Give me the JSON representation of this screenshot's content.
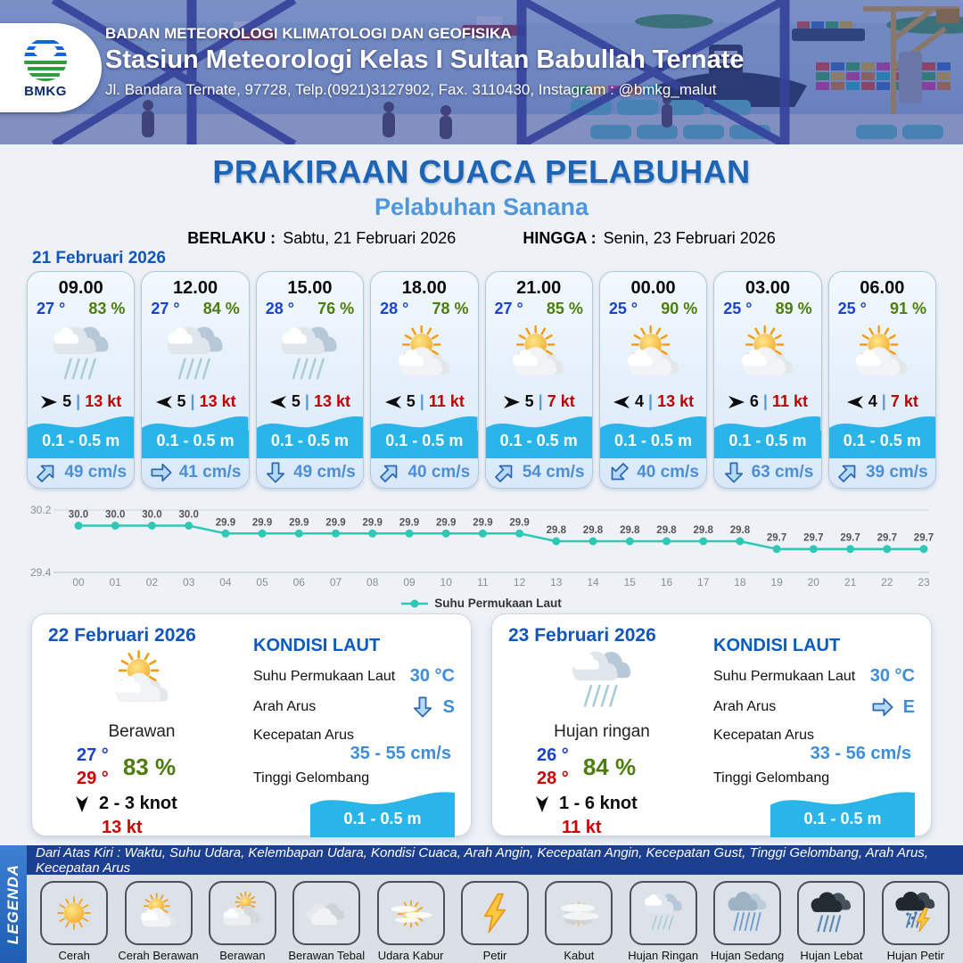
{
  "header": {
    "logo_text": "BMKG",
    "org": "BADAN METEOROLOGI KLIMATOLOGI DAN GEOFISIKA",
    "station": "Stasiun Meteorologi Kelas I Sultan Babullah Ternate",
    "address": "Jl. Bandara Ternate, 97728, Telp.(0921)3127902, Fax. 3110430, Instagram : @bmkg_malut"
  },
  "title": {
    "main": "PRAKIRAAN CUACA PELABUHAN",
    "port": "Pelabuhan Sanana"
  },
  "validity": {
    "berlaku_label": "BERLAKU :",
    "berlaku_value": "Sabtu, 21 Februari 2026",
    "hingga_label": "HINGGA :",
    "hingga_value": "Senin, 23 Februari 2026"
  },
  "ui": {
    "pipe": "|"
  },
  "colors": {
    "accent_blue": "#1d64b5",
    "light_blue": "#4f97dd",
    "wave_cyan": "#29b4ea",
    "temp_blue": "#1a43d1",
    "humidity_green": "#4e7d0e",
    "gust_red": "#c00000",
    "current_blue": "#4b8fd9",
    "chart_teal": "#2fc7b6"
  },
  "hourly": {
    "date": "21 Februari 2026",
    "cards": [
      {
        "time": "09.00",
        "temp": "27 °",
        "humidity": "83 %",
        "icon": "hujan-ringan-icon",
        "wind_rot": 0,
        "wind": "5",
        "gust": "13 kt",
        "wave": "0.1 - 0.5 m",
        "current_rot": 45,
        "current": "49 cm/s"
      },
      {
        "time": "12.00",
        "temp": "27 °",
        "humidity": "84 %",
        "icon": "hujan-ringan-icon",
        "wind_rot": 180,
        "wind": "5",
        "gust": "13 kt",
        "wave": "0.1 - 0.5 m",
        "current_rot": 90,
        "current": "41 cm/s"
      },
      {
        "time": "15.00",
        "temp": "28 °",
        "humidity": "76 %",
        "icon": "hujan-ringan-icon",
        "wind_rot": 180,
        "wind": "5",
        "gust": "13 kt",
        "wave": "0.1 - 0.5 m",
        "current_rot": 180,
        "current": "49 cm/s"
      },
      {
        "time": "18.00",
        "temp": "28 °",
        "humidity": "78 %",
        "icon": "cerah-berawan-icon",
        "wind_rot": 180,
        "wind": "5",
        "gust": "11 kt",
        "wave": "0.1 - 0.5 m",
        "current_rot": 45,
        "current": "40 cm/s"
      },
      {
        "time": "21.00",
        "temp": "27 °",
        "humidity": "85 %",
        "icon": "cerah-berawan-icon",
        "wind_rot": 0,
        "wind": "5",
        "gust": "7 kt",
        "wave": "0.1 - 0.5 m",
        "current_rot": 45,
        "current": "54 cm/s"
      },
      {
        "time": "00.00",
        "temp": "25 °",
        "humidity": "90 %",
        "icon": "cerah-berawan-icon",
        "wind_rot": 180,
        "wind": "4",
        "gust": "13 kt",
        "wave": "0.1 - 0.5 m",
        "current_rot": 225,
        "current": "40 cm/s"
      },
      {
        "time": "03.00",
        "temp": "25 °",
        "humidity": "89 %",
        "icon": "cerah-berawan-icon",
        "wind_rot": 0,
        "wind": "6",
        "gust": "11 kt",
        "wave": "0.1 - 0.5 m",
        "current_rot": 180,
        "current": "63 cm/s"
      },
      {
        "time": "06.00",
        "temp": "25 °",
        "humidity": "91 %",
        "icon": "cerah-berawan-icon",
        "wind_rot": 180,
        "wind": "4",
        "gust": "7 kt",
        "wave": "0.1 - 0.5 m",
        "current_rot": 45,
        "current": "39 cm/s"
      }
    ]
  },
  "chart_data": {
    "type": "line",
    "x": [
      "00",
      "01",
      "02",
      "03",
      "04",
      "05",
      "06",
      "07",
      "08",
      "09",
      "10",
      "11",
      "12",
      "13",
      "14",
      "15",
      "16",
      "17",
      "18",
      "19",
      "20",
      "21",
      "22",
      "23"
    ],
    "series": [
      {
        "name": "Suhu Permukaan Laut",
        "values": [
          30.0,
          30.0,
          30.0,
          30.0,
          29.9,
          29.9,
          29.9,
          29.9,
          29.9,
          29.9,
          29.9,
          29.9,
          29.9,
          29.8,
          29.8,
          29.8,
          29.8,
          29.8,
          29.8,
          29.7,
          29.7,
          29.7,
          29.7,
          29.7
        ]
      }
    ],
    "ylim": [
      29.4,
      30.2
    ],
    "yticks": [
      "29.4",
      "30.2"
    ],
    "grid": "horizontal",
    "legend_position": "bottom",
    "data_labels": true,
    "line_color": "#2fc7b6"
  },
  "daily": [
    {
      "date": "22 Februari 2026",
      "icon": "cerah-berawan-icon",
      "condition": "Berawan",
      "temp_min": "27 °",
      "temp_max": "29 °",
      "humidity": "83 %",
      "wind_rot": 90,
      "wind": "2  - 3 knot",
      "gust": "13 kt",
      "sea": {
        "heading": "KONDISI LAUT",
        "sst_label": "Suhu Permukaan Laut",
        "sst": "30 °C",
        "arah_label": "Arah Arus",
        "arah_rot": 180,
        "arah": "S",
        "kec_label": "Kecepatan Arus",
        "kec": "35  - 55 cm/s",
        "tinggi_label": "Tinggi Gelombang",
        "tinggi": "0.1 - 0.5 m"
      }
    },
    {
      "date": "23 Februari 2026",
      "icon": "hujan-ringan-icon",
      "condition": "Hujan ringan",
      "temp_min": "26 °",
      "temp_max": "28 °",
      "humidity": "84 %",
      "wind_rot": 90,
      "wind": "1  - 6 knot",
      "gust": "11 kt",
      "sea": {
        "heading": "KONDISI LAUT",
        "sst_label": "Suhu Permukaan Laut",
        "sst": "30 °C",
        "arah_label": "Arah Arus",
        "arah_rot": 90,
        "arah": "E",
        "kec_label": "Kecepatan Arus",
        "kec": "33  - 56 cm/s",
        "tinggi_label": "Tinggi Gelombang",
        "tinggi": "0.1 - 0.5 m"
      }
    }
  ],
  "legend": {
    "title": "LEGENDA",
    "note": "Dari Atas Kiri : Waktu, Suhu Udara, Kelembapan Udara, Kondisi Cuaca, Arah Angin, Kecepatan Angin, Kecepatan Gust, Tinggi Gelombang, Arah Arus, Kecepatan Arus",
    "items": [
      {
        "label": "Cerah",
        "icon": "cerah-icon"
      },
      {
        "label": "Cerah Berawan",
        "icon": "cerah-berawan-icon"
      },
      {
        "label": "Berawan",
        "icon": "berawan-icon"
      },
      {
        "label": "Berawan Tebal",
        "icon": "berawan-tebal-icon"
      },
      {
        "label": "Udara Kabur",
        "icon": "udara-kabur-icon"
      },
      {
        "label": "Petir",
        "icon": "petir-icon"
      },
      {
        "label": "Kabut",
        "icon": "kabut-icon"
      },
      {
        "label": "Hujan Ringan",
        "icon": "hujan-ringan-icon"
      },
      {
        "label": "Hujan Sedang",
        "icon": "hujan-sedang-icon"
      },
      {
        "label": "Hujan Lebat",
        "icon": "hujan-lebat-icon"
      },
      {
        "label": "Hujan Petir",
        "icon": "hujan-petir-icon"
      }
    ]
  }
}
